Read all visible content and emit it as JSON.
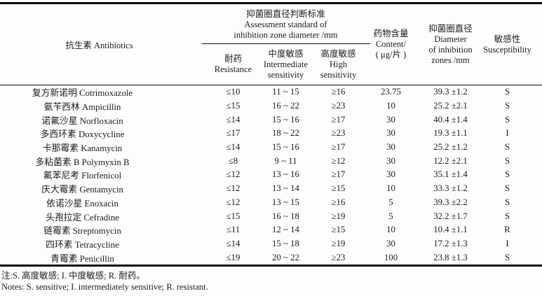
{
  "table": {
    "header": {
      "antibiotics": "抗生素 Antibiotics",
      "group": {
        "cn": "抑菌圈直径判断标准",
        "en1": "Assessment standard of",
        "en2": "inhibition zone diameter /mm"
      },
      "resistance": {
        "cn": "耐药",
        "en": "Resistance"
      },
      "intermediate": {
        "cn": "中度敏感",
        "en1": "Intermediate",
        "en2": "sensitivity"
      },
      "high": {
        "cn": "高度敏感",
        "en1": "High",
        "en2": "sensitivity"
      },
      "content": {
        "cn": "药物含量",
        "en1": "Content/",
        "en2": "( μg/片 )"
      },
      "diameter": {
        "cn": "抑菌圈直径",
        "en1": "Diameter",
        "en2": "of inhibition",
        "en3": "zones /mm"
      },
      "susceptibility": {
        "cn": "敏感性",
        "en": "Susceptibility"
      }
    },
    "rows": [
      {
        "name": "复方新诺明 Cotrimoxazole",
        "resistance": "≤10",
        "intermediate": "11 ~ 15",
        "high": "≥16",
        "content": "23.75",
        "diameter": "39.3 ±1.2",
        "susceptibility": "S"
      },
      {
        "name": "氨苄西林 Ampicillin",
        "resistance": "≤15",
        "intermediate": "16 ~ 22",
        "high": "≥23",
        "content": "10",
        "diameter": "25.2 ±2.1",
        "susceptibility": "S"
      },
      {
        "name": "诺氟沙星 Norfloxacin",
        "resistance": "≤14",
        "intermediate": "15 ~ 16",
        "high": "≥17",
        "content": "30",
        "diameter": "40.4 ±1.4",
        "susceptibility": "S"
      },
      {
        "name": "多西环素 Doxycycline",
        "resistance": "≤17",
        "intermediate": "18 ~ 22",
        "high": "≥23",
        "content": "30",
        "diameter": "19.3 ±1.1",
        "susceptibility": "I"
      },
      {
        "name": "卡那霉素 Kanamycin",
        "resistance": "≤14",
        "intermediate": "15 ~ 16",
        "high": "≥17",
        "content": "30",
        "diameter": "25.2 ±1.2",
        "susceptibility": "S"
      },
      {
        "name": "多粘菌素 B Polymyxin B",
        "resistance": "≤8",
        "intermediate": "9 ~ 11",
        "high": "≥12",
        "content": "30",
        "diameter": "12.2 ±2.1",
        "susceptibility": "S"
      },
      {
        "name": "氟苯尼考 Florfenicol",
        "resistance": "≤12",
        "intermediate": "13 ~ 16",
        "high": "≥17",
        "content": "30",
        "diameter": "35.1 ±1.4",
        "susceptibility": "S"
      },
      {
        "name": "庆大霉素 Gentamycin",
        "resistance": "≤12",
        "intermediate": "13 ~ 14",
        "high": "≥15",
        "content": "10",
        "diameter": "33.3 ±1.2",
        "susceptibility": "S"
      },
      {
        "name": "依诺沙星 Enoxacin",
        "resistance": "≤12",
        "intermediate": "13 ~ 15",
        "high": "≥16",
        "content": "5",
        "diameter": "39.3 ±2.2",
        "susceptibility": "S"
      },
      {
        "name": "头孢拉定 Cefradine",
        "resistance": "≤15",
        "intermediate": "16 ~ 18",
        "high": "≥19",
        "content": "5",
        "diameter": "32.2 ±1.7",
        "susceptibility": "S"
      },
      {
        "name": "链霉素 Streptomycin",
        "resistance": "≤11",
        "intermediate": "12 ~ 14",
        "high": "≥15",
        "content": "10",
        "diameter": "10.4 ±1.1",
        "susceptibility": "R"
      },
      {
        "name": "四环素 Tetracycline",
        "resistance": "≤14",
        "intermediate": "15 ~ 18",
        "high": "≥19",
        "content": "30",
        "diameter": "17.2 ±1.3",
        "susceptibility": "I"
      },
      {
        "name": "青霉素 Penicillin",
        "resistance": "≤19",
        "intermediate": "20 ~ 22",
        "high": "≥23",
        "content": "100",
        "diameter": "23.8 ±1.3",
        "susceptibility": "S"
      }
    ],
    "notes_cn": "注:S. 高度敏感; I. 中度敏感; R. 耐药。",
    "notes_en": "Notes: S. sensitive; I. intermediately sensitive; R. resistant."
  }
}
